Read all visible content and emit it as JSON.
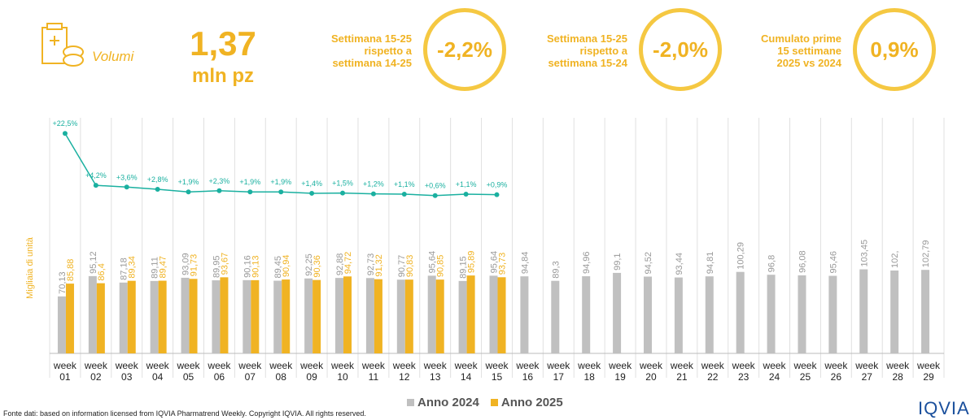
{
  "header": {
    "section": "Volumi",
    "value": "1,37",
    "unit": "mln pz"
  },
  "kpis": [
    {
      "label": [
        "Settimana 15-25",
        "rispetto a",
        "settimana 14-25"
      ],
      "value": "-2,2%"
    },
    {
      "label": [
        "Settimana 15-25",
        "rispetto a",
        "settimana 15-24"
      ],
      "value": "-2,0%"
    },
    {
      "label": [
        "Cumulato prime",
        "15 settimane",
        "2025 vs 2024"
      ],
      "value": "0,9%"
    }
  ],
  "chart_data": {
    "type": "bar",
    "y_label": "Migliaia di unità",
    "categories": [
      "week 01",
      "week 02",
      "week 03",
      "week 04",
      "week 05",
      "week 06",
      "week 07",
      "week 08",
      "week 09",
      "week 10",
      "week 11",
      "week 12",
      "week 13",
      "week 14",
      "week 15",
      "week 16",
      "week 17",
      "week 18",
      "week 19",
      "week 20",
      "week 21",
      "week 22",
      "week 23",
      "week 24",
      "week 25",
      "week 26",
      "week 27",
      "week 28",
      "week 29"
    ],
    "ylim": [
      0,
      290
    ],
    "y2lim": [
      -55,
      28
    ],
    "series": [
      {
        "name": "Anno 2024",
        "color": "#c0c0c0",
        "values": [
          70.13,
          95.12,
          87.18,
          89.11,
          93.09,
          89.95,
          90.16,
          89.45,
          92.25,
          92.88,
          92.73,
          90.77,
          95.64,
          89.15,
          95.64,
          94.84,
          89.3,
          94.96,
          99.1,
          94.52,
          93.44,
          94.81,
          100.29,
          96.8,
          96.08,
          95.46,
          103.45,
          102,
          102.79
        ],
        "value_labels": [
          "70,13",
          "95,12",
          "87,18",
          "89,11",
          "93,09",
          "89,95",
          "90,16",
          "89,45",
          "92,25",
          "92,88",
          "92,73",
          "90,77",
          "95,64",
          "89,15",
          "95,64",
          "94,84",
          "89,3",
          "94,96",
          "99,1",
          "94,52",
          "93,44",
          "94,81",
          "100,29",
          "96,8",
          "96,08",
          "95,46",
          "103,45",
          "102,",
          "102,79"
        ]
      },
      {
        "name": "Anno 2025",
        "color": "#f0b323",
        "values": [
          85.88,
          86.4,
          89.34,
          89.47,
          91.73,
          93.67,
          90.13,
          90.94,
          90.36,
          94.72,
          91.32,
          90.83,
          90.85,
          95.89,
          93.73,
          null,
          null,
          null,
          null,
          null,
          null,
          null,
          null,
          null,
          null,
          null,
          null,
          null,
          null
        ],
        "value_labels": [
          "85,88",
          "86,4",
          "89,34",
          "89,47",
          "91,73",
          "93,67",
          "90,13",
          "90,94",
          "90,36",
          "94,72",
          "91,32",
          "90,83",
          "90,85",
          "95,89",
          "93,73",
          null,
          null,
          null,
          null,
          null,
          null,
          null,
          null,
          null,
          null,
          null,
          null,
          null,
          null
        ]
      },
      {
        "type": "line",
        "axis": "y2",
        "color": "#1ab0a0",
        "values": [
          22.5,
          4.2,
          3.6,
          2.8,
          1.9,
          2.3,
          1.9,
          1.9,
          1.4,
          1.5,
          1.2,
          1.1,
          0.6,
          1.1,
          0.9,
          null,
          null,
          null,
          null,
          null,
          null,
          null,
          null,
          null,
          null,
          null,
          null,
          null,
          null
        ],
        "value_labels": [
          "+22,5%",
          "+4,2%",
          "+3,6%",
          "+2,8%",
          "+1,9%",
          "+2,3%",
          "+1,9%",
          "+1,9%",
          "+1,4%",
          "+1,5%",
          "+1,2%",
          "+1,1%",
          "+0,6%",
          "+1,1%",
          "+0,9%",
          null,
          null,
          null,
          null,
          null,
          null,
          null,
          null,
          null,
          null,
          null,
          null,
          null,
          null
        ]
      }
    ]
  },
  "source": "Fonte dati: based on information licensed from IQVIA Pharmatrend Weekly. Copyright IQVIA. All rights reserved.",
  "logo": "IQVIA"
}
